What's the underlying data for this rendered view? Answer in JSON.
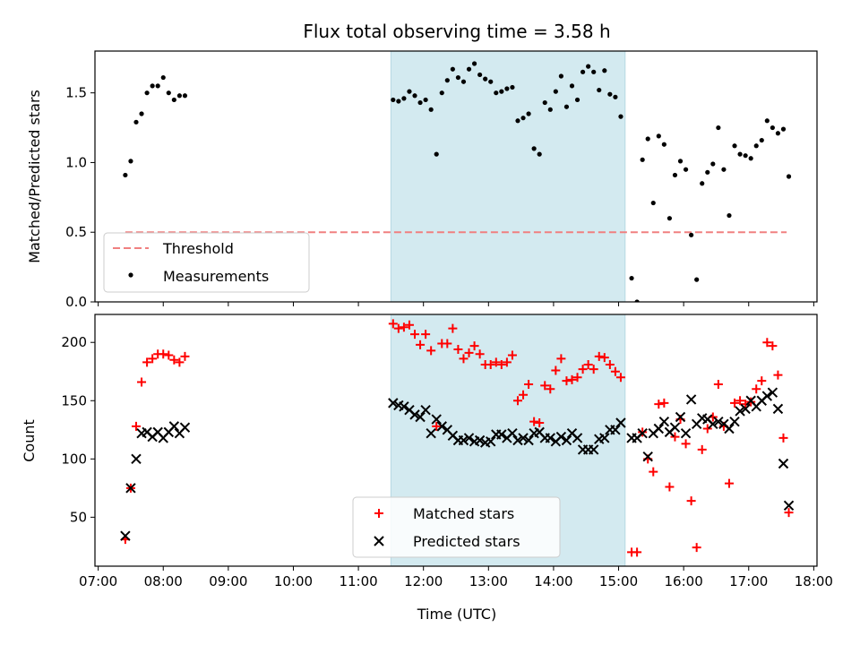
{
  "chart_data": [
    {
      "type": "scatter",
      "title": "Flux total observing time = 3.58 h",
      "xlabel": "",
      "ylabel": "Matched/Predicted stars",
      "xlim": [
        "06:57",
        "18:03"
      ],
      "ylim": [
        0,
        1.8
      ],
      "yticks": [
        "0.0",
        "0.5",
        "1.0",
        "1.5"
      ],
      "shaded_span": [
        "11:30",
        "15:06"
      ],
      "shaded_color": "#d3eaf0",
      "legend": {
        "position": "lower-left",
        "entries": [
          "Threshold",
          "Measurements"
        ]
      },
      "series": [
        {
          "name": "Threshold",
          "style": "dashed-line",
          "color": "#f08080",
          "x": [
            "07:25",
            "17:35"
          ],
          "y": [
            0.5,
            0.5
          ]
        },
        {
          "name": "Measurements",
          "style": "dot",
          "color": "#000000",
          "x": [
            "07:25",
            "07:30",
            "07:35",
            "07:40",
            "07:45",
            "07:50",
            "07:55",
            "08:00",
            "08:05",
            "08:10",
            "08:15",
            "08:20",
            "11:32",
            "11:37",
            "11:42",
            "11:47",
            "11:52",
            "11:57",
            "12:02",
            "12:07",
            "12:12",
            "12:17",
            "12:22",
            "12:27",
            "12:32",
            "12:37",
            "12:42",
            "12:47",
            "12:52",
            "12:57",
            "13:02",
            "13:07",
            "13:12",
            "13:17",
            "13:22",
            "13:27",
            "13:32",
            "13:37",
            "13:42",
            "13:47",
            "13:52",
            "13:57",
            "14:02",
            "14:07",
            "14:12",
            "14:17",
            "14:22",
            "14:27",
            "14:32",
            "14:37",
            "14:42",
            "14:47",
            "14:52",
            "14:57",
            "15:02",
            "15:12",
            "15:17",
            "15:22",
            "15:27",
            "15:32",
            "15:37",
            "15:42",
            "15:47",
            "15:52",
            "15:57",
            "16:02",
            "16:07",
            "16:12",
            "16:17",
            "16:22",
            "16:27",
            "16:32",
            "16:37",
            "16:42",
            "16:47",
            "16:52",
            "16:57",
            "17:02",
            "17:07",
            "17:12",
            "17:17",
            "17:22",
            "17:27",
            "17:32",
            "17:37"
          ],
          "y": [
            0.91,
            1.01,
            1.29,
            1.35,
            1.5,
            1.55,
            1.55,
            1.61,
            1.5,
            1.45,
            1.48,
            1.48,
            1.45,
            1.44,
            1.46,
            1.51,
            1.48,
            1.43,
            1.45,
            1.38,
            1.06,
            1.5,
            1.59,
            1.67,
            1.61,
            1.58,
            1.67,
            1.71,
            1.63,
            1.6,
            1.58,
            1.5,
            1.51,
            1.53,
            1.54,
            1.3,
            1.32,
            1.35,
            1.1,
            1.06,
            1.43,
            1.38,
            1.51,
            1.62,
            1.4,
            1.55,
            1.45,
            1.65,
            1.69,
            1.65,
            1.52,
            1.66,
            1.49,
            1.47,
            1.33,
            0.17,
            0.0,
            1.02,
            1.17,
            0.71,
            1.19,
            1.13,
            0.6,
            0.91,
            1.01,
            0.95,
            0.48,
            0.16,
            0.85,
            0.93,
            0.99,
            1.25,
            0.95,
            0.62,
            1.12,
            1.06,
            1.05,
            1.03,
            1.12,
            1.16,
            1.3,
            1.25,
            1.21,
            1.24,
            0.9
          ]
        }
      ]
    },
    {
      "type": "scatter",
      "title": "",
      "xlabel": "Time (UTC)",
      "ylabel": "Count",
      "xlim": [
        "06:57",
        "18:03"
      ],
      "ylim": [
        8,
        224
      ],
      "xticks": [
        "07:00",
        "08:00",
        "09:00",
        "10:00",
        "11:00",
        "12:00",
        "13:00",
        "14:00",
        "15:00",
        "16:00",
        "17:00",
        "18:00"
      ],
      "yticks": [
        "50",
        "100",
        "150",
        "200"
      ],
      "shaded_span": [
        "11:30",
        "15:06"
      ],
      "shaded_color": "#d3eaf0",
      "legend": {
        "position": "lower-center",
        "entries": [
          "Matched stars",
          "Predicted stars"
        ]
      },
      "series": [
        {
          "name": "Matched stars",
          "marker": "plus",
          "color": "#ff0000",
          "x": [
            "07:25",
            "07:30",
            "07:35",
            "07:40",
            "07:45",
            "07:50",
            "07:55",
            "08:00",
            "08:05",
            "08:10",
            "08:15",
            "08:20",
            "11:32",
            "11:37",
            "11:42",
            "11:47",
            "11:52",
            "11:57",
            "12:02",
            "12:07",
            "12:12",
            "12:17",
            "12:22",
            "12:27",
            "12:32",
            "12:37",
            "12:42",
            "12:47",
            "12:52",
            "12:57",
            "13:02",
            "13:07",
            "13:12",
            "13:17",
            "13:22",
            "13:27",
            "13:32",
            "13:37",
            "13:42",
            "13:47",
            "13:52",
            "13:57",
            "14:02",
            "14:07",
            "14:12",
            "14:17",
            "14:22",
            "14:27",
            "14:32",
            "14:37",
            "14:42",
            "14:47",
            "14:52",
            "14:57",
            "15:02",
            "15:12",
            "15:17",
            "15:22",
            "15:27",
            "15:32",
            "15:37",
            "15:42",
            "15:47",
            "15:52",
            "15:57",
            "16:02",
            "16:07",
            "16:12",
            "16:17",
            "16:22",
            "16:27",
            "16:32",
            "16:37",
            "16:42",
            "16:47",
            "16:52",
            "16:57",
            "17:02",
            "17:07",
            "17:12",
            "17:17",
            "17:22",
            "17:27",
            "17:32",
            "17:37"
          ],
          "y": [
            31,
            75,
            128,
            166,
            183,
            186,
            190,
            190,
            189,
            185,
            183,
            188,
            216,
            212,
            213,
            215,
            207,
            198,
            207,
            193,
            128,
            199,
            199,
            212,
            194,
            186,
            191,
            197,
            190,
            181,
            181,
            183,
            181,
            183,
            189,
            150,
            155,
            164,
            132,
            131,
            163,
            160,
            176,
            186,
            167,
            168,
            170,
            177,
            181,
            177,
            188,
            187,
            181,
            175,
            170,
            20,
            20,
            123,
            100,
            89,
            147,
            148,
            76,
            119,
            134,
            113,
            64,
            24,
            108,
            126,
            136,
            164,
            128,
            79,
            148,
            150,
            147,
            149,
            160,
            167,
            200,
            197,
            172,
            118,
            54
          ]
        },
        {
          "name": "Predicted stars",
          "marker": "x",
          "color": "#000000",
          "x": [
            "07:25",
            "07:30",
            "07:35",
            "07:40",
            "07:45",
            "07:50",
            "07:55",
            "08:00",
            "08:05",
            "08:10",
            "08:15",
            "08:20",
            "11:32",
            "11:37",
            "11:42",
            "11:47",
            "11:52",
            "11:57",
            "12:02",
            "12:07",
            "12:12",
            "12:17",
            "12:22",
            "12:27",
            "12:32",
            "12:37",
            "12:42",
            "12:47",
            "12:52",
            "12:57",
            "13:02",
            "13:07",
            "13:12",
            "13:17",
            "13:22",
            "13:27",
            "13:32",
            "13:37",
            "13:42",
            "13:47",
            "13:52",
            "13:57",
            "14:02",
            "14:07",
            "14:12",
            "14:17",
            "14:22",
            "14:27",
            "14:32",
            "14:37",
            "14:42",
            "14:47",
            "14:52",
            "14:57",
            "15:02",
            "15:12",
            "15:17",
            "15:22",
            "15:27",
            "15:32",
            "15:37",
            "15:42",
            "15:47",
            "15:52",
            "15:57",
            "16:02",
            "16:07",
            "16:12",
            "16:17",
            "16:22",
            "16:27",
            "16:32",
            "16:37",
            "16:42",
            "16:47",
            "16:52",
            "16:57",
            "17:02",
            "17:07",
            "17:12",
            "17:17",
            "17:22",
            "17:27",
            "17:32",
            "17:37"
          ],
          "y": [
            34,
            75,
            100,
            122,
            123,
            119,
            123,
            118,
            123,
            128,
            122,
            127,
            148,
            146,
            145,
            142,
            138,
            136,
            142,
            122,
            134,
            128,
            125,
            120,
            116,
            116,
            118,
            115,
            116,
            114,
            115,
            121,
            121,
            118,
            122,
            116,
            118,
            116,
            122,
            123,
            118,
            118,
            115,
            119,
            116,
            122,
            118,
            108,
            108,
            108,
            117,
            118,
            125,
            125,
            131,
            118,
            118,
            122,
            102,
            122,
            126,
            132,
            123,
            127,
            136,
            122,
            151,
            130,
            135,
            134,
            130,
            132,
            130,
            126,
            132,
            141,
            143,
            150,
            145,
            150,
            154,
            157,
            143,
            96,
            60
          ]
        }
      ]
    }
  ]
}
